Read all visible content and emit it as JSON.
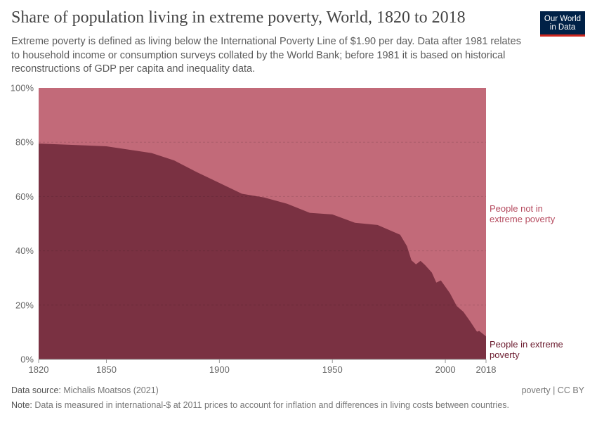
{
  "title": "Share of population living in extreme poverty, World, 1820 to 2018",
  "subtitle": "Extreme poverty is defined as living below the International Poverty Line of $1.90 per day. Data after 1981 relates to household income or consumption surveys collated by the World Bank; before 1981 it is based on historical reconstructions of GDP per capita and inequality data.",
  "logo": {
    "line1": "Our World",
    "line2": "in Data"
  },
  "footer": {
    "source_label": "Data source:",
    "source": "Michalis Moatsos (2021)",
    "license": "poverty | CC BY",
    "note_label": "Note:",
    "note": "Data is measured in international-$ at 2011 prices to account for inflation and differences in living costs between countries."
  },
  "chart_data": {
    "type": "area",
    "stacked": true,
    "xlim": [
      1820,
      2018
    ],
    "ylim": [
      0,
      100
    ],
    "x_ticks": [
      "1820",
      "1850",
      "1900",
      "1950",
      "2000",
      "2018"
    ],
    "y_ticks": [
      "0%",
      "20%",
      "40%",
      "60%",
      "80%",
      "100%"
    ],
    "grid": true,
    "colors": {
      "in_poverty": "#7a3142",
      "not_in_poverty": "#c26a79",
      "label_in": "#6b1b2e",
      "label_not": "#b54a5e"
    },
    "series": [
      {
        "name": "People in extreme poverty",
        "x": [
          1820,
          1850,
          1870,
          1880,
          1890,
          1900,
          1910,
          1920,
          1930,
          1940,
          1950,
          1960,
          1970,
          1980,
          1981,
          1983,
          1985,
          1987,
          1989,
          1991,
          1994,
          1996,
          1998,
          2002,
          2005,
          2008,
          2011,
          2014,
          2015,
          2018
        ],
        "y": [
          79.5,
          78.5,
          76,
          73.3,
          69,
          65,
          61,
          59.6,
          57.3,
          54,
          53.4,
          50.3,
          49.5,
          45.9,
          44.5,
          41.7,
          36.5,
          35,
          36.3,
          34.8,
          32,
          28.3,
          29.1,
          24.4,
          19.7,
          17.5,
          14,
          10.2,
          10.5,
          8.5
        ]
      },
      {
        "name": "People not in extreme poverty",
        "complement_of": "People in extreme poverty"
      }
    ],
    "series_labels": {
      "in_poverty": [
        "People in extreme",
        "poverty"
      ],
      "not_in_poverty": [
        "People not in",
        "extreme poverty"
      ]
    }
  }
}
